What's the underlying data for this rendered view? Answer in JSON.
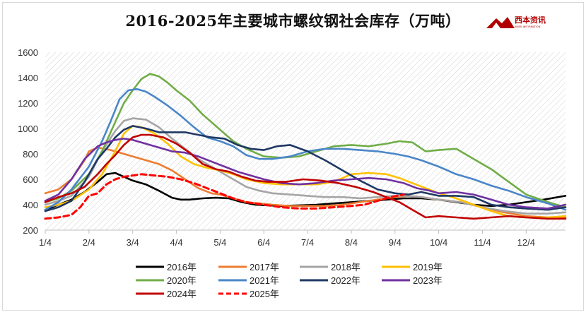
{
  "title": "2016-2025年主要城市螺纹钢社会库存（万吨）",
  "logo": {
    "brand": "西本资讯",
    "sub": "XIBEN INFORMATION"
  },
  "colors": {
    "2016年": "#000000",
    "2017年": "#ed7d31",
    "2018年": "#a5a5a5",
    "2019年": "#ffc000",
    "2020年": "#70ad47",
    "2021年": "#4a86c8",
    "2022年": "#1f3864",
    "2023年": "#7030a0",
    "2024年": "#c00000",
    "2025年": "#ff0000"
  },
  "chart_data": {
    "type": "line",
    "title": "2016-2025年主要城市螺纹钢社会库存（万吨）",
    "ylim": [
      200,
      1600
    ],
    "yticks": [
      200,
      400,
      600,
      800,
      1000,
      1200,
      1400,
      1600
    ],
    "xlim": [
      1,
      12.9
    ],
    "xticks": [
      1,
      2,
      3,
      4,
      5,
      6,
      7,
      8,
      9,
      10,
      11,
      12
    ],
    "xtick_labels": [
      "1/4",
      "2/4",
      "3/4",
      "4/4",
      "5/4",
      "6/4",
      "7/4",
      "8/4",
      "9/4",
      "10/4",
      "11/4",
      "12/4"
    ],
    "grid": false,
    "legend": "bottom",
    "series": [
      {
        "name": "2016年",
        "x": [
          1.0,
          1.3,
          1.6,
          1.9,
          2.2,
          2.4,
          2.6,
          2.8,
          3.0,
          3.3,
          3.6,
          3.9,
          4.1,
          4.3,
          4.6,
          4.9,
          5.2,
          5.5,
          5.8,
          6.1,
          6.4,
          6.8,
          7.2,
          7.6,
          8.0,
          8.4,
          8.8,
          9.2,
          9.6,
          10.0,
          10.4,
          10.8,
          11.2,
          11.6,
          12.0,
          12.4,
          12.9
        ],
        "values": [
          360,
          400,
          440,
          500,
          580,
          640,
          650,
          620,
          590,
          560,
          510,
          455,
          440,
          440,
          450,
          455,
          450,
          420,
          400,
          395,
          390,
          395,
          400,
          410,
          420,
          430,
          440,
          450,
          450,
          440,
          420,
          400,
          390,
          400,
          420,
          440,
          470
        ]
      },
      {
        "name": "2017年",
        "x": [
          1.0,
          1.3,
          1.6,
          1.9,
          2.0,
          2.2,
          2.5,
          2.8,
          3.0,
          3.3,
          3.6,
          3.9,
          4.2,
          4.5,
          4.8,
          5.0,
          5.3,
          5.6,
          5.9,
          6.2,
          6.6,
          7.0,
          7.4,
          7.8,
          8.2,
          8.6,
          9.0,
          9.3,
          9.6,
          10.0,
          10.5,
          11.0,
          11.5,
          12.0,
          12.5,
          12.9
        ],
        "values": [
          490,
          520,
          600,
          750,
          820,
          850,
          830,
          800,
          780,
          750,
          720,
          670,
          600,
          530,
          490,
          480,
          450,
          420,
          410,
          400,
          390,
          390,
          390,
          400,
          420,
          440,
          460,
          470,
          460,
          440,
          420,
          380,
          340,
          310,
          300,
          300
        ]
      },
      {
        "name": "2018年",
        "x": [
          1.0,
          1.3,
          1.6,
          2.0,
          2.3,
          2.6,
          2.8,
          3.0,
          3.3,
          3.6,
          3.9,
          4.2,
          4.5,
          4.8,
          5.0,
          5.3,
          5.6,
          5.9,
          6.2,
          6.6,
          7.0,
          7.4,
          7.8,
          8.2,
          8.6,
          9.0,
          9.3,
          9.6,
          10.0,
          10.5,
          11.0,
          11.5,
          12.0,
          12.5,
          12.9
        ],
        "values": [
          400,
          430,
          470,
          620,
          820,
          980,
          1060,
          1080,
          1070,
          1010,
          920,
          840,
          760,
          700,
          660,
          600,
          540,
          510,
          490,
          480,
          470,
          460,
          460,
          450,
          460,
          470,
          470,
          460,
          440,
          420,
          380,
          350,
          330,
          330,
          340
        ]
      },
      {
        "name": "2019年",
        "x": [
          1.0,
          1.3,
          1.6,
          2.0,
          2.3,
          2.6,
          2.8,
          3.0,
          3.2,
          3.5,
          3.8,
          4.1,
          4.4,
          4.7,
          5.0,
          5.3,
          5.6,
          6.0,
          6.4,
          6.8,
          7.2,
          7.6,
          8.0,
          8.4,
          8.8,
          9.1,
          9.4,
          9.7,
          10.0,
          10.4,
          10.8,
          11.2,
          11.6,
          12.0,
          12.5,
          12.9
        ],
        "values": [
          380,
          400,
          430,
          520,
          640,
          820,
          960,
          1020,
          1010,
          960,
          880,
          780,
          720,
          690,
          670,
          640,
          600,
          570,
          560,
          560,
          560,
          580,
          640,
          650,
          640,
          610,
          570,
          530,
          490,
          450,
          400,
          350,
          310,
          300,
          300,
          310
        ]
      },
      {
        "name": "2020年",
        "x": [
          1.0,
          1.3,
          1.6,
          2.0,
          2.3,
          2.6,
          2.8,
          3.0,
          3.2,
          3.4,
          3.6,
          3.8,
          4.0,
          4.3,
          4.6,
          5.0,
          5.3,
          5.6,
          6.0,
          6.4,
          6.8,
          7.2,
          7.6,
          8.0,
          8.4,
          8.8,
          9.1,
          9.4,
          9.7,
          10.0,
          10.4,
          10.8,
          11.2,
          11.6,
          12.0,
          12.5,
          12.9
        ],
        "values": [
          420,
          450,
          510,
          640,
          820,
          1050,
          1200,
          1300,
          1390,
          1430,
          1410,
          1360,
          1300,
          1220,
          1110,
          990,
          900,
          840,
          780,
          770,
          780,
          820,
          860,
          870,
          860,
          880,
          900,
          890,
          820,
          830,
          840,
          760,
          680,
          580,
          480,
          420,
          380
        ]
      },
      {
        "name": "2021年",
        "x": [
          1.0,
          1.3,
          1.6,
          2.0,
          2.3,
          2.5,
          2.7,
          2.9,
          3.1,
          3.3,
          3.5,
          3.8,
          4.1,
          4.4,
          4.7,
          5.0,
          5.3,
          5.6,
          5.9,
          6.2,
          6.6,
          7.0,
          7.4,
          7.8,
          8.2,
          8.6,
          9.0,
          9.3,
          9.6,
          10.0,
          10.4,
          10.8,
          11.2,
          11.6,
          12.0,
          12.5,
          12.9
        ],
        "values": [
          360,
          420,
          520,
          700,
          900,
          1060,
          1230,
          1300,
          1310,
          1290,
          1250,
          1180,
          1100,
          1010,
          930,
          900,
          860,
          790,
          760,
          760,
          780,
          820,
          840,
          840,
          830,
          820,
          800,
          780,
          750,
          700,
          640,
          600,
          550,
          510,
          460,
          410,
          360
        ]
      },
      {
        "name": "2022年",
        "x": [
          1.0,
          1.3,
          1.6,
          1.9,
          2.2,
          2.4,
          2.6,
          2.8,
          3.0,
          3.3,
          3.6,
          3.9,
          4.2,
          4.5,
          4.8,
          5.1,
          5.4,
          5.7,
          6.0,
          6.3,
          6.6,
          7.0,
          7.4,
          7.8,
          8.2,
          8.6,
          9.0,
          9.3,
          9.6,
          10.0,
          10.4,
          10.8,
          11.2,
          11.6,
          12.0,
          12.5,
          12.9
        ],
        "values": [
          350,
          380,
          430,
          580,
          760,
          840,
          930,
          990,
          1020,
          1000,
          970,
          970,
          970,
          950,
          930,
          920,
          870,
          840,
          830,
          860,
          870,
          820,
          750,
          670,
          590,
          520,
          490,
          480,
          500,
          470,
          470,
          460,
          400,
          380,
          370,
          360,
          380
        ]
      },
      {
        "name": "2023年",
        "x": [
          1.0,
          1.3,
          1.6,
          1.9,
          2.2,
          2.4,
          2.6,
          2.8,
          3.0,
          3.3,
          3.6,
          3.9,
          4.2,
          4.5,
          4.8,
          5.1,
          5.4,
          5.7,
          6.0,
          6.4,
          6.8,
          7.2,
          7.6,
          8.0,
          8.4,
          8.8,
          9.2,
          9.5,
          9.8,
          10.0,
          10.4,
          10.8,
          11.2,
          11.6,
          12.0,
          12.5,
          12.9
        ],
        "values": [
          430,
          480,
          600,
          760,
          860,
          890,
          910,
          920,
          910,
          880,
          850,
          820,
          810,
          780,
          740,
          700,
          660,
          630,
          600,
          570,
          560,
          570,
          590,
          600,
          610,
          600,
          570,
          530,
          510,
          490,
          500,
          480,
          440,
          400,
          380,
          370,
          400
        ]
      },
      {
        "name": "2024年",
        "x": [
          1.0,
          1.3,
          1.6,
          1.9,
          2.2,
          2.4,
          2.6,
          2.8,
          3.0,
          3.2,
          3.4,
          3.7,
          4.0,
          4.3,
          4.6,
          4.9,
          5.2,
          5.5,
          5.8,
          6.1,
          6.5,
          6.9,
          7.3,
          7.7,
          8.1,
          8.5,
          8.8,
          9.1,
          9.4,
          9.7,
          10.0,
          10.4,
          10.8,
          11.2,
          11.6,
          12.0,
          12.5,
          12.9
        ],
        "values": [
          420,
          460,
          490,
          540,
          640,
          720,
          790,
          870,
          930,
          950,
          950,
          930,
          880,
          810,
          720,
          680,
          660,
          620,
          590,
          580,
          580,
          600,
          590,
          570,
          540,
          500,
          460,
          420,
          360,
          300,
          310,
          300,
          290,
          300,
          310,
          300,
          290,
          290
        ]
      },
      {
        "name": "2025年",
        "x": [
          1.0,
          1.3,
          1.6,
          1.8,
          2.0,
          2.2,
          2.4,
          2.6,
          2.8,
          3.0,
          3.2,
          3.5,
          3.8,
          4.1,
          4.4,
          4.7,
          5.0,
          5.3,
          5.6,
          6.0,
          6.4,
          6.8,
          7.2,
          7.6,
          8.0,
          8.3,
          8.6,
          8.9,
          9.2
        ],
        "values": [
          290,
          300,
          320,
          380,
          470,
          490,
          560,
          600,
          620,
          630,
          640,
          630,
          620,
          600,
          570,
          530,
          490,
          450,
          420,
          400,
          380,
          370,
          370,
          380,
          390,
          400,
          430,
          460,
          480
        ]
      }
    ]
  },
  "axes": {
    "ylabels": [
      "200",
      "400",
      "600",
      "800",
      "1000",
      "1200",
      "1400",
      "1600"
    ]
  },
  "legend": {
    "order": [
      "2016年",
      "2017年",
      "2018年",
      "2019年",
      "2020年",
      "2021年",
      "2022年",
      "2023年",
      "2024年",
      "2025年"
    ]
  }
}
